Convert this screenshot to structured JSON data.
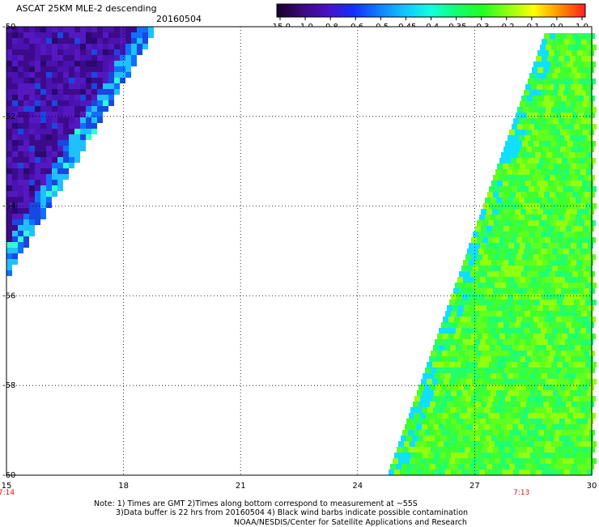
{
  "header": {
    "title": "ASCAT 25KM MLE-2 descending",
    "date": "20160504"
  },
  "colorbar": {
    "tick_labels": [
      "-15.0",
      "-1.0",
      "-0.8",
      "-0.6",
      "-0.5",
      "-0.45",
      "-0.4",
      "-0.35",
      "-0.3",
      "-0.2",
      "-0.1",
      "0.0",
      "1.0"
    ],
    "colors": [
      "#1a0028",
      "#3a0a7a",
      "#4a10c8",
      "#1030ff",
      "#1080ff",
      "#10c8ff",
      "#10ffe0",
      "#10ff70",
      "#20ff20",
      "#90ff10",
      "#ffff00",
      "#ff9000",
      "#ff2020"
    ]
  },
  "map": {
    "lat_labels": [
      "-50",
      "-52",
      "-54",
      "-56",
      "-58",
      "-60"
    ],
    "lon_labels": [
      "15",
      "18",
      "21",
      "24",
      "27",
      "30"
    ],
    "time_labels": [
      {
        "text": "7:14",
        "lon": 15
      },
      {
        "text": "7:13",
        "lon": 28.2
      }
    ],
    "lat_range": [
      -60,
      -50
    ],
    "lon_range": [
      15,
      30
    ],
    "west_swath_color": "#5515b8",
    "east_swath_color": "#50ff30"
  },
  "notes": {
    "line1": "Note: 1) Times are GMT 2)Times along bottom correspond to measurement at ~55S",
    "line2": "3)Data buffer is 22 hrs from 20160504 4) Black wind barbs indicate possible contamination",
    "line3": "NOAA/NESDIS/Center for Satellite Applications and Research"
  }
}
